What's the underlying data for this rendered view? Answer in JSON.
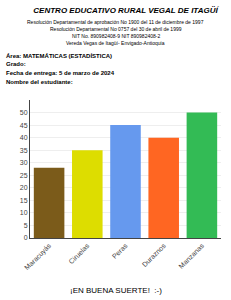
{
  "chart_data": {
    "type": "bar",
    "title": "CENTRO EDUCATIVO RURAL VEGAL DE ITAGÜÍ",
    "subtitle": [
      "Resolución Departamental de aprobación No 1900 del 11 de diciembre de 1997",
      "Resolución Departamental No 0757 del 30 de abril de 1999",
      "NIT No. 890982408-9 NIT 890982408-2",
      "Vereda Vegas de Itagüí- Envigado-Antioquia"
    ],
    "annotations": [
      "Área: MATEMÁTICAS (ESTADÍSTICA)",
      "Grado:",
      "Fecha de entrega: 5 de marzo de 2024",
      "Nombre del estudiante:",
      "¡EN BUENA SUERTE!  :-)"
    ],
    "categories": [
      "Maracuyás",
      "Ciruelas",
      "Peras",
      "Duraznos",
      "Manzanas"
    ],
    "values": [
      28,
      35,
      45,
      40,
      50
    ],
    "colors": [
      "#7B5B1A",
      "#DDDD00",
      "#6699EE",
      "#FF6622",
      "#33BB55"
    ],
    "ylim": [
      0,
      55
    ],
    "yticks": [
      0,
      5,
      10,
      15,
      20,
      25,
      30,
      35,
      40,
      45,
      50
    ],
    "grid": true
  }
}
